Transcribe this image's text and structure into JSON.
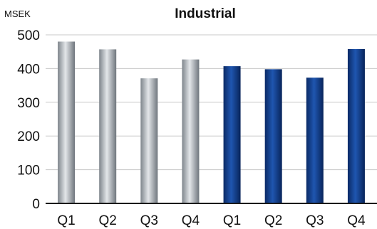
{
  "chart_data": {
    "type": "bar",
    "title": "Industrial",
    "ylabel": "MSEK",
    "xlabel": "",
    "ylim": [
      0,
      500
    ],
    "yticks": [
      0,
      100,
      200,
      300,
      400,
      500
    ],
    "grid": true,
    "categories": [
      "Q1",
      "Q2",
      "Q3",
      "Q4",
      "Q1",
      "Q2",
      "Q3",
      "Q4"
    ],
    "values": [
      480,
      457,
      371,
      427,
      407,
      398,
      373,
      458
    ],
    "bar_styles": [
      "silver",
      "silver",
      "silver",
      "silver",
      "navy",
      "navy",
      "navy",
      "navy"
    ],
    "colors": {
      "silver_dark": "#7e858c",
      "silver_light": "#e3e6e9",
      "navy_dark": "#0a2a66",
      "navy_light": "#1f56b0",
      "grid": "#c8c8c8",
      "axis": "#1a1a1a"
    }
  }
}
